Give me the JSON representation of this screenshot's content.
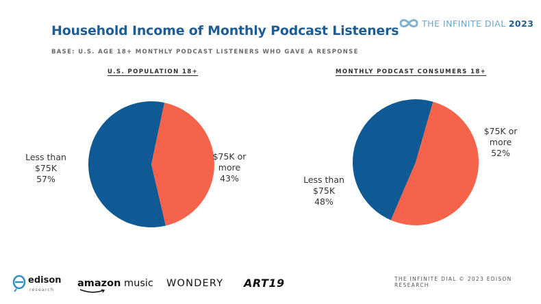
{
  "header": {
    "title": "Household Income of Monthly Podcast Listeners",
    "subtitle": "BASE: U.S. AGE 18+ MONTHLY PODCAST LISTENERS WHO GAVE A RESPONSE"
  },
  "brand": {
    "icon": "infinity-icon",
    "name": "THE INFINITE DIAL",
    "year": "2023",
    "colors": {
      "name": "#6aa7c9",
      "year": "#1f5d96"
    }
  },
  "chart_data": [
    {
      "type": "pie",
      "title": "U.S. POPULATION 18+",
      "categories": [
        "Less than $75K",
        "$75K or more"
      ],
      "values": [
        57,
        43
      ],
      "unit": "%",
      "colors": [
        "#0f5a94",
        "#f5634a"
      ],
      "labels": [
        {
          "lines": [
            "Less than",
            "$75K",
            "57%"
          ]
        },
        {
          "lines": [
            "$75K or",
            "more",
            "43%"
          ]
        }
      ]
    },
    {
      "type": "pie",
      "title": "MONTHLY PODCAST CONSUMERS 18+",
      "categories": [
        "Less than $75K",
        "$75K or more"
      ],
      "values": [
        48,
        52
      ],
      "unit": "%",
      "colors": [
        "#0f5a94",
        "#f5634a"
      ],
      "labels": [
        {
          "lines": [
            "Less than",
            "$75K",
            "48%"
          ]
        },
        {
          "lines": [
            "$75K or",
            "more",
            "52%"
          ]
        }
      ]
    }
  ],
  "footer": {
    "note": "THE INFINITE DIAL  © 2023 EDISON RESEARCH",
    "logos": {
      "edison_name": "edison",
      "edison_sub": "research",
      "amazon_bold": "amazon",
      "amazon_light": " music",
      "wondery": "WONDERY",
      "art19": "ART19"
    }
  }
}
